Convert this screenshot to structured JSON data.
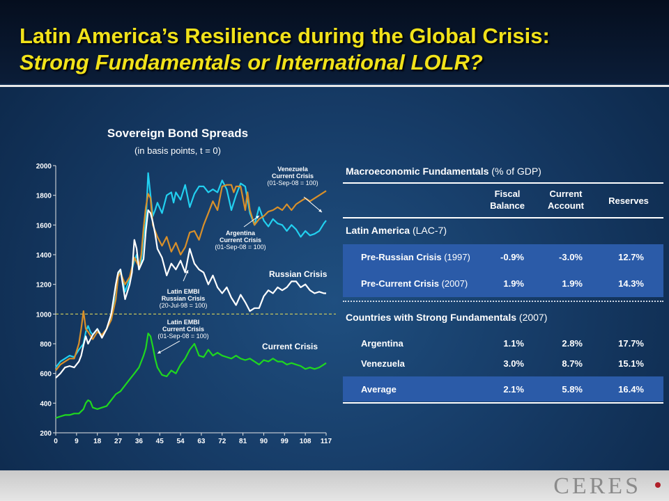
{
  "slide": {
    "title_line1": "Latin America’s Resilience during the Global Crisis:",
    "title_line2": "Strong Fundamentals or International LOLR?",
    "logo": "CERES"
  },
  "chart_data": {
    "type": "line",
    "title": "Sovereign Bond Spreads",
    "subtitle": "(in basis points, t = 0)",
    "ylim": [
      200,
      2000
    ],
    "yticks": [
      200,
      400,
      600,
      800,
      1000,
      1200,
      1400,
      1600,
      1800,
      2000
    ],
    "xticks": [
      0,
      9,
      18,
      27,
      36,
      45,
      54,
      63,
      72,
      81,
      90,
      99,
      108,
      117
    ],
    "xlim": [
      0,
      117
    ],
    "reference_line": 1000,
    "group_labels": [
      "Russian Crisis",
      "Current Crisis"
    ],
    "series": [
      {
        "color": "#22d0f0",
        "points": [
          [
            0,
            640
          ],
          [
            2,
            680
          ],
          [
            4,
            700
          ],
          [
            6,
            720
          ],
          [
            8,
            710
          ],
          [
            10,
            760
          ],
          [
            12,
            800
          ],
          [
            13,
            880
          ],
          [
            14,
            920
          ],
          [
            15,
            880
          ],
          [
            16,
            860
          ],
          [
            18,
            900
          ],
          [
            20,
            850
          ],
          [
            22,
            900
          ],
          [
            24,
            980
          ],
          [
            26,
            1120
          ],
          [
            27,
            1250
          ],
          [
            28,
            1300
          ],
          [
            30,
            1150
          ],
          [
            32,
            1240
          ],
          [
            34,
            1360
          ],
          [
            35,
            1400
          ],
          [
            36,
            1300
          ],
          [
            37,
            1350
          ],
          [
            38,
            1520
          ],
          [
            39,
            1620
          ],
          [
            40,
            1950
          ],
          [
            41,
            1800
          ],
          [
            42,
            1660
          ],
          [
            43,
            1700
          ],
          [
            44,
            1750
          ],
          [
            46,
            1680
          ],
          [
            48,
            1800
          ],
          [
            50,
            1820
          ],
          [
            51,
            1750
          ],
          [
            52,
            1820
          ],
          [
            54,
            1770
          ],
          [
            56,
            1870
          ],
          [
            58,
            1720
          ],
          [
            60,
            1810
          ],
          [
            62,
            1860
          ],
          [
            64,
            1860
          ],
          [
            66,
            1820
          ],
          [
            68,
            1840
          ],
          [
            70,
            1820
          ],
          [
            72,
            1900
          ],
          [
            74,
            1840
          ],
          [
            76,
            1700
          ],
          [
            78,
            1800
          ],
          [
            80,
            1880
          ],
          [
            82,
            1860
          ],
          [
            84,
            1680
          ],
          [
            86,
            1600
          ],
          [
            88,
            1720
          ],
          [
            90,
            1630
          ],
          [
            92,
            1590
          ],
          [
            94,
            1640
          ],
          [
            96,
            1610
          ],
          [
            98,
            1600
          ],
          [
            100,
            1560
          ],
          [
            102,
            1600
          ],
          [
            104,
            1570
          ],
          [
            106,
            1520
          ],
          [
            108,
            1560
          ],
          [
            110,
            1530
          ],
          [
            112,
            1540
          ],
          [
            114,
            1560
          ],
          [
            116,
            1610
          ],
          [
            117,
            1630
          ]
        ]
      },
      {
        "color": "#d9902a",
        "points": [
          [
            0,
            620
          ],
          [
            2,
            660
          ],
          [
            4,
            680
          ],
          [
            6,
            700
          ],
          [
            8,
            700
          ],
          [
            10,
            800
          ],
          [
            11,
            900
          ],
          [
            12,
            1020
          ],
          [
            13,
            900
          ],
          [
            14,
            880
          ],
          [
            16,
            830
          ],
          [
            18,
            880
          ],
          [
            20,
            860
          ],
          [
            22,
            900
          ],
          [
            24,
            960
          ],
          [
            26,
            1100
          ],
          [
            27,
            1250
          ],
          [
            28,
            1280
          ],
          [
            30,
            1200
          ],
          [
            32,
            1250
          ],
          [
            34,
            1380
          ],
          [
            36,
            1320
          ],
          [
            37,
            1400
          ],
          [
            38,
            1580
          ],
          [
            39,
            1720
          ],
          [
            40,
            1810
          ],
          [
            41,
            1780
          ],
          [
            42,
            1600
          ],
          [
            44,
            1520
          ],
          [
            46,
            1460
          ],
          [
            48,
            1520
          ],
          [
            50,
            1420
          ],
          [
            52,
            1480
          ],
          [
            54,
            1400
          ],
          [
            56,
            1450
          ],
          [
            58,
            1550
          ],
          [
            60,
            1560
          ],
          [
            62,
            1500
          ],
          [
            64,
            1600
          ],
          [
            66,
            1680
          ],
          [
            68,
            1760
          ],
          [
            70,
            1700
          ],
          [
            72,
            1860
          ],
          [
            74,
            1870
          ],
          [
            76,
            1870
          ],
          [
            77,
            1820
          ],
          [
            78,
            1860
          ],
          [
            80,
            1860
          ],
          [
            82,
            1700
          ],
          [
            83,
            1820
          ],
          [
            84,
            1700
          ],
          [
            86,
            1600
          ],
          [
            88,
            1640
          ],
          [
            90,
            1660
          ],
          [
            92,
            1690
          ],
          [
            94,
            1700
          ],
          [
            96,
            1720
          ],
          [
            98,
            1700
          ],
          [
            100,
            1740
          ],
          [
            102,
            1700
          ],
          [
            104,
            1740
          ],
          [
            106,
            1760
          ],
          [
            108,
            1780
          ],
          [
            110,
            1760
          ],
          [
            112,
            1780
          ],
          [
            114,
            1800
          ],
          [
            116,
            1820
          ],
          [
            117,
            1830
          ]
        ]
      },
      {
        "color": "#ffffff",
        "points": [
          [
            0,
            570
          ],
          [
            2,
            600
          ],
          [
            4,
            640
          ],
          [
            6,
            650
          ],
          [
            8,
            640
          ],
          [
            10,
            680
          ],
          [
            11,
            720
          ],
          [
            12,
            790
          ],
          [
            13,
            850
          ],
          [
            14,
            800
          ],
          [
            16,
            860
          ],
          [
            18,
            900
          ],
          [
            20,
            840
          ],
          [
            22,
            900
          ],
          [
            24,
            1000
          ],
          [
            26,
            1200
          ],
          [
            27,
            1280
          ],
          [
            28,
            1300
          ],
          [
            30,
            1100
          ],
          [
            32,
            1200
          ],
          [
            33,
            1280
          ],
          [
            34,
            1500
          ],
          [
            35,
            1440
          ],
          [
            36,
            1300
          ],
          [
            38,
            1370
          ],
          [
            39,
            1560
          ],
          [
            40,
            1700
          ],
          [
            41,
            1680
          ],
          [
            42,
            1620
          ],
          [
            43,
            1540
          ],
          [
            44,
            1440
          ],
          [
            46,
            1380
          ],
          [
            48,
            1260
          ],
          [
            50,
            1340
          ],
          [
            52,
            1300
          ],
          [
            54,
            1360
          ],
          [
            56,
            1280
          ],
          [
            58,
            1440
          ],
          [
            60,
            1340
          ],
          [
            62,
            1300
          ],
          [
            64,
            1280
          ],
          [
            66,
            1200
          ],
          [
            68,
            1260
          ],
          [
            70,
            1180
          ],
          [
            72,
            1140
          ],
          [
            74,
            1180
          ],
          [
            76,
            1110
          ],
          [
            78,
            1060
          ],
          [
            80,
            1130
          ],
          [
            82,
            1080
          ],
          [
            84,
            1020
          ],
          [
            86,
            1040
          ],
          [
            88,
            1040
          ],
          [
            90,
            1120
          ],
          [
            92,
            1160
          ],
          [
            94,
            1140
          ],
          [
            96,
            1180
          ],
          [
            98,
            1160
          ],
          [
            100,
            1180
          ],
          [
            102,
            1220
          ],
          [
            104,
            1220
          ],
          [
            106,
            1180
          ],
          [
            108,
            1200
          ],
          [
            110,
            1160
          ],
          [
            112,
            1140
          ],
          [
            114,
            1150
          ],
          [
            116,
            1140
          ],
          [
            117,
            1140
          ]
        ]
      },
      {
        "color": "#1fd81f",
        "points": [
          [
            0,
            300
          ],
          [
            2,
            310
          ],
          [
            4,
            320
          ],
          [
            6,
            320
          ],
          [
            8,
            330
          ],
          [
            10,
            330
          ],
          [
            12,
            360
          ],
          [
            13,
            400
          ],
          [
            14,
            420
          ],
          [
            15,
            410
          ],
          [
            16,
            370
          ],
          [
            18,
            360
          ],
          [
            20,
            370
          ],
          [
            22,
            380
          ],
          [
            24,
            420
          ],
          [
            26,
            460
          ],
          [
            28,
            480
          ],
          [
            30,
            520
          ],
          [
            32,
            560
          ],
          [
            34,
            600
          ],
          [
            36,
            640
          ],
          [
            38,
            720
          ],
          [
            39,
            770
          ],
          [
            40,
            870
          ],
          [
            41,
            850
          ],
          [
            42,
            780
          ],
          [
            43,
            700
          ],
          [
            44,
            640
          ],
          [
            46,
            590
          ],
          [
            48,
            580
          ],
          [
            50,
            620
          ],
          [
            52,
            600
          ],
          [
            54,
            660
          ],
          [
            56,
            700
          ],
          [
            58,
            760
          ],
          [
            60,
            800
          ],
          [
            62,
            720
          ],
          [
            64,
            710
          ],
          [
            66,
            760
          ],
          [
            68,
            720
          ],
          [
            70,
            740
          ],
          [
            72,
            720
          ],
          [
            74,
            710
          ],
          [
            76,
            700
          ],
          [
            78,
            720
          ],
          [
            80,
            700
          ],
          [
            82,
            690
          ],
          [
            84,
            700
          ],
          [
            86,
            680
          ],
          [
            88,
            660
          ],
          [
            90,
            690
          ],
          [
            92,
            680
          ],
          [
            94,
            700
          ],
          [
            96,
            680
          ],
          [
            98,
            680
          ],
          [
            100,
            660
          ],
          [
            102,
            670
          ],
          [
            104,
            660
          ],
          [
            106,
            650
          ],
          [
            108,
            630
          ],
          [
            110,
            640
          ],
          [
            112,
            630
          ],
          [
            114,
            640
          ],
          [
            116,
            660
          ],
          [
            117,
            670
          ]
        ]
      }
    ],
    "annotations": [
      "Venezuela\nCurrent Crisis\n(01-Sep-08 = 100)",
      "Argentina\nCurrent Crisis\n(01-Sep-08 = 100)",
      "Latin EMBI\nRussian Crisis\n(20-Jul-98 = 100)",
      "Latin EMBI\nCurrent Crisis\n(01-Sep-08 = 100)"
    ]
  },
  "table": {
    "title_bold": "Macroeconomic Fundamentals",
    "title_rest": " (% of GDP)",
    "columns": [
      "Fiscal\nBalance",
      "Current\nAccount",
      "Reserves"
    ],
    "section1": {
      "label_bold": "Latin America",
      "label_rest": "(LAC-7)"
    },
    "rows1": [
      {
        "label_bold": "Pre-Russian Crisis",
        "label_rest": " (1997)",
        "values": [
          "-0.9%",
          "-3.0%",
          "12.7%"
        ]
      },
      {
        "label_bold": "Pre-Current Crisis",
        "label_rest": " (2007)",
        "values": [
          "1.9%",
          "1.9%",
          "14.3%"
        ]
      }
    ],
    "section2": {
      "label_bold": "Countries with Strong Fundamentals",
      "label_rest": " (2007)"
    },
    "rows2": [
      {
        "label_bold": "Argentina",
        "values": [
          "1.1%",
          "2.8%",
          "17.7%"
        ]
      },
      {
        "label_bold": "Venezuela",
        "values": [
          "3.0%",
          "8.7%",
          "15.1%"
        ]
      },
      {
        "label_bold": "Average",
        "values": [
          "2.1%",
          "5.8%",
          "16.4%"
        ]
      }
    ]
  }
}
